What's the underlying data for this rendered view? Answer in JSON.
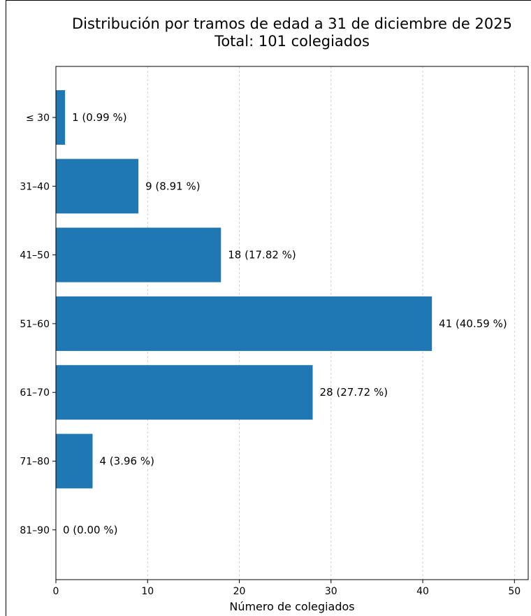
{
  "chart_data": {
    "type": "bar",
    "orientation": "horizontal",
    "title": "Distribución por tramos de edad a 31 de diciembre de 2025",
    "subtitle": "Total: 101 colegiados",
    "xlabel": "Número de colegiados",
    "ylabel": "",
    "xlim": [
      0,
      51.5
    ],
    "xticks": [
      0,
      10,
      20,
      30,
      40,
      50
    ],
    "grid": "vertical dashed",
    "bar_color": "#1f77b4",
    "categories": [
      "≤ 30",
      "31–40",
      "41–50",
      "51–60",
      "61–70",
      "71–80",
      "81–90"
    ],
    "values": [
      1,
      9,
      18,
      41,
      28,
      4,
      0
    ],
    "labels": [
      "1  (0.99 %)",
      "9  (8.91 %)",
      "18  (17.82 %)",
      "41  (40.59 %)",
      "28  (27.72 %)",
      "4  (3.96 %)",
      "0  (0.00 %)"
    ]
  }
}
